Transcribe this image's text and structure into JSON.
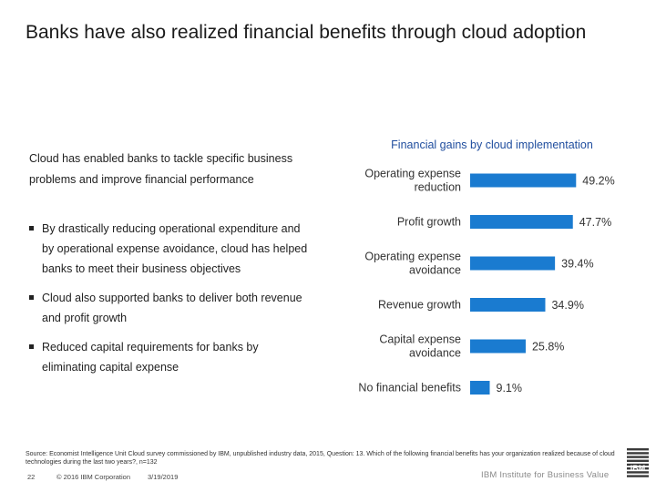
{
  "slide": {
    "title": "Banks have also realized financial benefits through cloud adoption",
    "intro": "Cloud has enabled banks to tackle specific business problems and improve financial performance",
    "bullets": [
      "By drastically reducing operational expenditure and by operational expense avoidance, cloud has helped banks to meet their business objectives",
      "Cloud also supported banks to deliver both revenue and profit growth",
      "Reduced capital requirements for banks by eliminating capital expense"
    ],
    "source": "Source: Economist Intelligence Unit Cloud survey commissioned by IBM, unpublished industry data, 2015, Question: 13. Which of the following financial benefits has your organization realized because of cloud technologies during the last two years?, n=132",
    "footer": {
      "page": "22",
      "copyright": "© 2016 IBM Corporation",
      "date": "3/19/2019",
      "brand": "IBM Institute for Business Value"
    },
    "logo_text": "IBM",
    "colors": {
      "bar": "#1a7bd0",
      "chart_title": "#1f4d9e"
    }
  },
  "chart_data": {
    "type": "bar",
    "orientation": "horizontal",
    "title": "Financial gains by cloud implementation",
    "categories": [
      [
        "Operating expense",
        "reduction"
      ],
      [
        "Profit growth"
      ],
      [
        "Operating expense",
        "avoidance"
      ],
      [
        "Revenue growth"
      ],
      [
        "Capital expense",
        "avoidance"
      ],
      [
        "No financial benefits"
      ]
    ],
    "values": [
      49.2,
      47.7,
      39.4,
      34.9,
      25.8,
      9.1
    ],
    "value_labels": [
      "49.2%",
      "47.7%",
      "39.4%",
      "34.9%",
      "25.8%",
      "9.1%"
    ],
    "xlim": [
      0,
      55
    ],
    "grid": false,
    "legend": "none"
  }
}
